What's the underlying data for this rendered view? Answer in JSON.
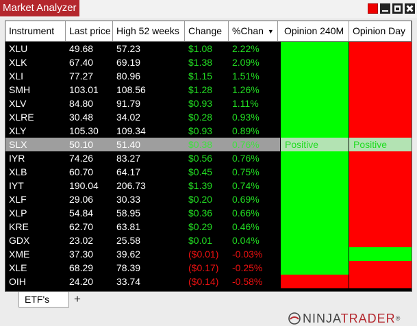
{
  "window": {
    "title": "Market Analyzer"
  },
  "columns": [
    "Instrument",
    "Last price",
    "High 52 weeks",
    "Change",
    "%Chan",
    "Opinion 240M",
    "Opinion Day"
  ],
  "rows": [
    {
      "instrument": "XLU",
      "last": "49.68",
      "high52": "57.23",
      "change": "$1.08",
      "pct": "2.22%",
      "dir": "pos",
      "op240": "green",
      "opday": "red"
    },
    {
      "instrument": "XLK",
      "last": "67.40",
      "high52": "69.19",
      "change": "$1.38",
      "pct": "2.09%",
      "dir": "pos",
      "op240": "green",
      "opday": "red"
    },
    {
      "instrument": "XLI",
      "last": "77.27",
      "high52": "80.96",
      "change": "$1.15",
      "pct": "1.51%",
      "dir": "pos",
      "op240": "green",
      "opday": "red"
    },
    {
      "instrument": "SMH",
      "last": "103.01",
      "high52": "108.56",
      "change": "$1.28",
      "pct": "1.26%",
      "dir": "pos",
      "op240": "green",
      "opday": "red"
    },
    {
      "instrument": "XLV",
      "last": "84.80",
      "high52": "91.79",
      "change": "$0.93",
      "pct": "1.11%",
      "dir": "pos",
      "op240": "green",
      "opday": "red"
    },
    {
      "instrument": "XLRE",
      "last": "30.48",
      "high52": "34.02",
      "change": "$0.28",
      "pct": "0.93%",
      "dir": "pos",
      "op240": "green",
      "opday": "red"
    },
    {
      "instrument": "XLY",
      "last": "105.30",
      "high52": "109.34",
      "change": "$0.93",
      "pct": "0.89%",
      "dir": "pos",
      "op240": "green",
      "opday": "red"
    },
    {
      "instrument": "SLX",
      "last": "50.10",
      "high52": "51.40",
      "change": "$0.38",
      "pct": "0.76%",
      "dir": "pos",
      "op240": "selected",
      "opday": "selected",
      "selected": true,
      "op240_label": "Positive",
      "opday_label": "Positive"
    },
    {
      "instrument": "IYR",
      "last": "74.26",
      "high52": "83.27",
      "change": "$0.56",
      "pct": "0.76%",
      "dir": "pos",
      "op240": "green",
      "opday": "red"
    },
    {
      "instrument": "XLB",
      "last": "60.70",
      "high52": "64.17",
      "change": "$0.45",
      "pct": "0.75%",
      "dir": "pos",
      "op240": "green",
      "opday": "red"
    },
    {
      "instrument": "IYT",
      "last": "190.04",
      "high52": "206.73",
      "change": "$1.39",
      "pct": "0.74%",
      "dir": "pos",
      "op240": "green",
      "opday": "red"
    },
    {
      "instrument": "XLF",
      "last": "29.06",
      "high52": "30.33",
      "change": "$0.20",
      "pct": "0.69%",
      "dir": "pos",
      "op240": "green",
      "opday": "red"
    },
    {
      "instrument": "XLP",
      "last": "54.84",
      "high52": "58.95",
      "change": "$0.36",
      "pct": "0.66%",
      "dir": "pos",
      "op240": "green",
      "opday": "red"
    },
    {
      "instrument": "KRE",
      "last": "62.70",
      "high52": "63.81",
      "change": "$0.29",
      "pct": "0.46%",
      "dir": "pos",
      "op240": "green",
      "opday": "red"
    },
    {
      "instrument": "GDX",
      "last": "23.02",
      "high52": "25.58",
      "change": "$0.01",
      "pct": "0.04%",
      "dir": "pos",
      "op240": "green",
      "opday": "red"
    },
    {
      "instrument": "XME",
      "last": "37.30",
      "high52": "39.62",
      "change": "($0.01)",
      "pct": "-0.03%",
      "dir": "neg",
      "op240": "green",
      "opday": "green"
    },
    {
      "instrument": "XLE",
      "last": "68.29",
      "high52": "78.39",
      "change": "($0.17)",
      "pct": "-0.25%",
      "dir": "neg",
      "op240": "green",
      "opday": "red"
    },
    {
      "instrument": "OIH",
      "last": "24.20",
      "high52": "33.74",
      "change": "($0.14)",
      "pct": "-0.58%",
      "dir": "neg",
      "op240": "red",
      "opday": "red"
    }
  ],
  "tabs": [
    {
      "label": "ETF's",
      "active": true
    }
  ],
  "add_tab_label": "+",
  "logo": {
    "part1": "NINJA",
    "part2": "TRADER",
    "mark": "®"
  },
  "colors": {
    "accent": "#b4272d",
    "positive": "#00ff00",
    "negative": "#ff0000"
  }
}
